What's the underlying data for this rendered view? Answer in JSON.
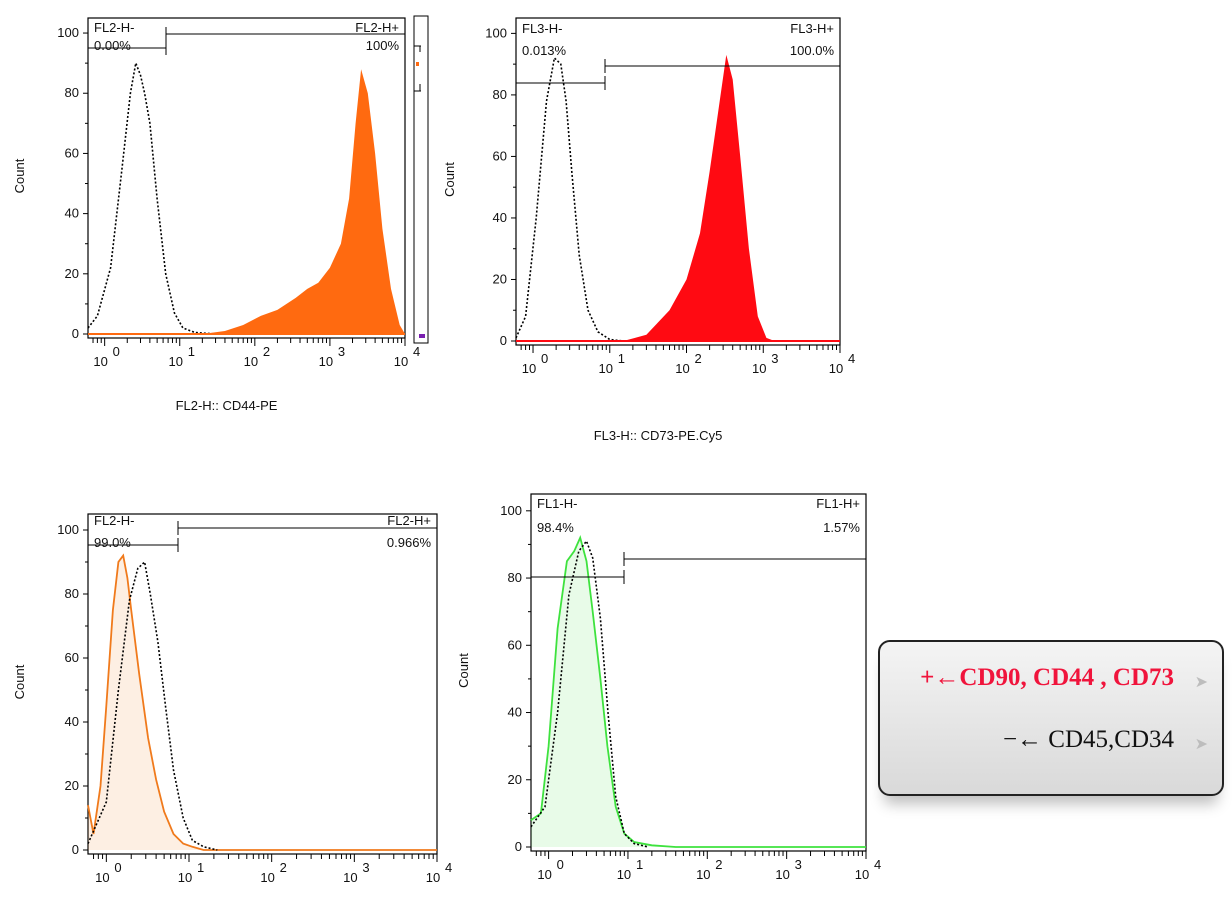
{
  "chart_data": [
    {
      "type": "area",
      "ylabel": "Count",
      "xlabel": "FL2-H:: CD44-PE",
      "x_scale": "log",
      "xlim": [
        0.6,
        10000
      ],
      "ylim": [
        0,
        105
      ],
      "y_ticks": [
        "0",
        "20",
        "40",
        "60",
        "80",
        "100"
      ],
      "x_ticks": [
        "10",
        "10",
        "10",
        "10",
        "10"
      ],
      "x_tick_exponents": [
        "0",
        "1",
        "2",
        "3",
        "4"
      ],
      "gates": {
        "neg_label": "FL2-H-",
        "neg_value": "0.00%",
        "pos_label": "FL2-H+",
        "pos_value": "100%"
      },
      "series": [
        {
          "style": "dotted",
          "color": "#000000",
          "x": [
            0.6,
            0.8,
            1.2,
            1.7,
            2.2,
            2.6,
            3.0,
            3.4,
            4.0,
            5.0,
            6.5,
            8.5,
            11,
            16,
            30
          ],
          "y": [
            2,
            6,
            22,
            55,
            80,
            90,
            86,
            80,
            70,
            45,
            20,
            7,
            2,
            0.5,
            0
          ]
        },
        {
          "style": "filled",
          "color": "#ff6a10",
          "x": [
            0.6,
            20,
            40,
            70,
            120,
            200,
            350,
            500,
            700,
            1000,
            1400,
            1800,
            2200,
            2600,
            3200,
            4000,
            5000,
            6500,
            8500,
            10000
          ],
          "y": [
            0,
            0,
            1,
            3,
            6,
            8,
            12,
            15,
            17,
            22,
            30,
            45,
            70,
            88,
            80,
            60,
            35,
            15,
            3,
            0
          ]
        }
      ]
    },
    {
      "type": "area",
      "ylabel": "Count",
      "xlabel": "FL3-H:: CD73-PE.Cy5",
      "x_scale": "log",
      "xlim": [
        0.6,
        10000
      ],
      "ylim": [
        0,
        105
      ],
      "y_ticks": [
        "0",
        "20",
        "40",
        "60",
        "80",
        "100"
      ],
      "x_ticks": [
        "10",
        "10",
        "10",
        "10",
        "10"
      ],
      "x_tick_exponents": [
        "0",
        "1",
        "2",
        "3",
        "4"
      ],
      "gates": {
        "neg_label": "FL3-H-",
        "neg_value": "0.013%",
        "pos_label": "FL3-H+",
        "pos_value": "100.0%"
      },
      "series": [
        {
          "style": "dotted",
          "color": "#000000",
          "x": [
            0.6,
            0.8,
            1.1,
            1.5,
            1.9,
            2.3,
            2.7,
            3.2,
            4.0,
            5.2,
            7.0,
            10,
            15
          ],
          "y": [
            1,
            8,
            40,
            78,
            92,
            90,
            78,
            55,
            28,
            10,
            3,
            0.5,
            0
          ]
        },
        {
          "style": "filled",
          "color": "#ff0a12",
          "x": [
            0.6,
            15,
            30,
            60,
            100,
            150,
            200,
            260,
            330,
            400,
            500,
            650,
            850,
            1100,
            1400
          ],
          "y": [
            0,
            0,
            2,
            10,
            20,
            35,
            55,
            75,
            93,
            85,
            60,
            30,
            8,
            1,
            0
          ]
        }
      ]
    },
    {
      "type": "area",
      "ylabel": "Count",
      "xlabel": "",
      "x_scale": "log",
      "xlim": [
        0.6,
        10000
      ],
      "ylim": [
        0,
        105
      ],
      "y_ticks": [
        "0",
        "20",
        "40",
        "60",
        "80",
        "100"
      ],
      "x_ticks": [
        "10",
        "10",
        "10",
        "10",
        "10"
      ],
      "x_tick_exponents": [
        "0",
        "1",
        "2",
        "3",
        "4"
      ],
      "gates": {
        "neg_label": "FL2-H-",
        "neg_value": "99.0%",
        "pos_label": "FL2-H+",
        "pos_value": "0.966%"
      },
      "series": [
        {
          "style": "solid-filled",
          "color": "#f07a1c",
          "x": [
            0.6,
            0.7,
            0.85,
            1.0,
            1.2,
            1.4,
            1.6,
            1.8,
            2.0,
            2.5,
            3.2,
            4.0,
            5.0,
            6.5,
            8.5,
            11,
            15,
            10000
          ],
          "y": [
            14,
            5,
            20,
            45,
            75,
            90,
            92,
            85,
            75,
            55,
            35,
            22,
            12,
            5,
            2,
            1,
            0,
            0
          ]
        },
        {
          "style": "dotted",
          "color": "#000000",
          "x": [
            0.6,
            1.0,
            1.4,
            1.9,
            2.4,
            2.9,
            3.4,
            4.2,
            5.2,
            6.5,
            8.5,
            11,
            15,
            22
          ],
          "y": [
            2,
            15,
            50,
            78,
            88,
            90,
            80,
            65,
            45,
            25,
            10,
            3,
            1,
            0
          ]
        }
      ]
    },
    {
      "type": "area",
      "ylabel": "Count",
      "xlabel": "",
      "x_scale": "log",
      "xlim": [
        0.6,
        10000
      ],
      "ylim": [
        0,
        105
      ],
      "y_ticks": [
        "0",
        "20",
        "40",
        "60",
        "80",
        "100"
      ],
      "x_ticks": [
        "10",
        "10",
        "10",
        "10",
        "10"
      ],
      "x_tick_exponents": [
        "0",
        "1",
        "2",
        "3",
        "4"
      ],
      "gates": {
        "neg_label": "FL1-H-",
        "neg_value": "98.4%",
        "pos_label": "FL1-H+",
        "pos_value": "1.57%"
      },
      "series": [
        {
          "style": "solid-filled",
          "color": "#3ee23e",
          "x": [
            0.6,
            0.8,
            1.0,
            1.3,
            1.7,
            2.1,
            2.5,
            3.0,
            3.6,
            4.5,
            5.5,
            7.0,
            9.0,
            12,
            20,
            40,
            10000
          ],
          "y": [
            8,
            10,
            30,
            65,
            85,
            88,
            92,
            85,
            70,
            50,
            30,
            12,
            4,
            1.5,
            0.5,
            0,
            0
          ]
        },
        {
          "style": "dotted",
          "color": "#000000",
          "x": [
            0.6,
            0.9,
            1.3,
            1.8,
            2.4,
            3.0,
            3.6,
            4.5,
            5.6,
            7.0,
            9.0,
            12,
            18
          ],
          "y": [
            6,
            12,
            40,
            75,
            88,
            91,
            86,
            68,
            40,
            15,
            4,
            1,
            0
          ]
        }
      ]
    }
  ],
  "legend": {
    "positive_text": "+←CD90, CD44 , CD73",
    "negative_text": "−← CD45,CD34",
    "arrow_icon": "triangle-right-icon",
    "positive_color": "#f0143c"
  }
}
